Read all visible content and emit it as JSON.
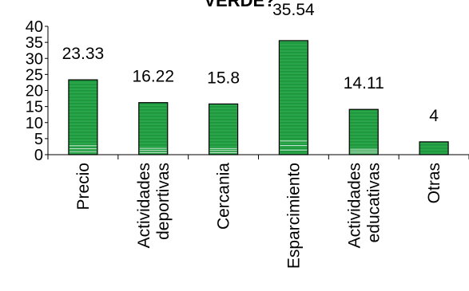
{
  "chart_data": {
    "type": "bar",
    "title": "VERDE?",
    "categories": [
      [
        "Precio"
      ],
      [
        "Actividades",
        "deportivas"
      ],
      [
        "Cercania"
      ],
      [
        "Esparcimiento"
      ],
      [
        "Actividades",
        "educativas"
      ],
      [
        "Otras"
      ]
    ],
    "values": [
      23.33,
      16.22,
      15.8,
      35.54,
      14.11,
      4
    ],
    "data_labels": [
      "23.33",
      "16.22",
      "15.8",
      "35.54",
      "14.11",
      "4"
    ],
    "yticks": [
      "0",
      "5",
      "10",
      "15",
      "20",
      "25",
      "30",
      "35",
      "40"
    ],
    "ylim": [
      0,
      40
    ],
    "grid": false,
    "legend": "none",
    "colors": {
      "bar": "#1f8f3a",
      "bar_highlight": "#ffffff",
      "outline": "#000000"
    }
  }
}
